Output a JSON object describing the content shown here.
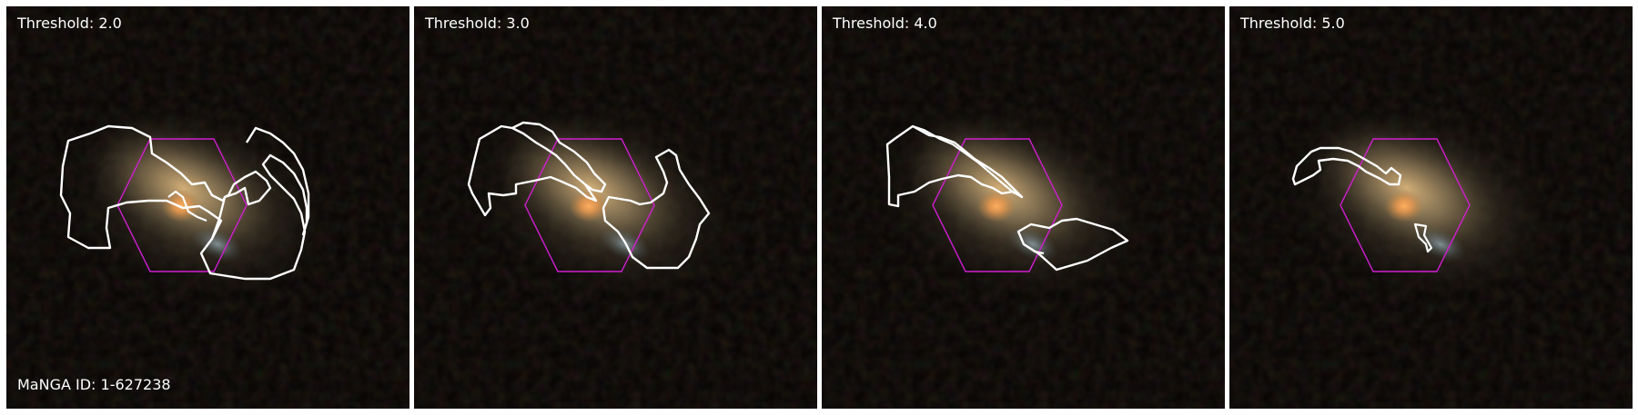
{
  "panels": [
    {
      "label": "Threshold: 2.0"
    },
    {
      "label": "Threshold: 3.0"
    },
    {
      "label": "Threshold: 4.0"
    },
    {
      "label": "Threshold: 5.0"
    }
  ],
  "galaxy_id_label": "MaNGA ID: 1-627238",
  "colors": {
    "background": "#050302",
    "contour": "#ffffff",
    "ifu_hexagon": "#d21ed2",
    "galaxy_core": "#f5a85a",
    "divider": "#ffffff"
  }
}
